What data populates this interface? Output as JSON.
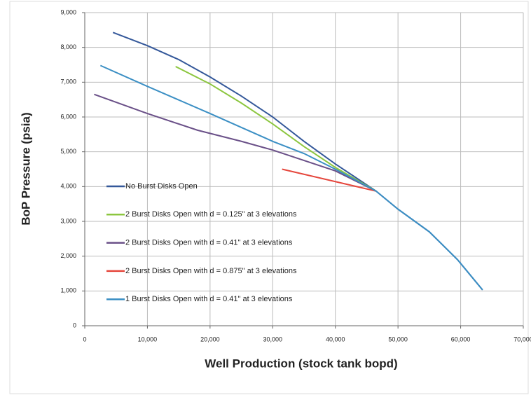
{
  "chart_data": {
    "type": "line",
    "xlabel": "Well Production (stock tank bopd)",
    "ylabel": "BoP Pressure (psia)",
    "xlim": [
      0,
      70000
    ],
    "xticks": [
      0,
      {
        "value": 10000,
        "label": "10,000"
      },
      {
        "value": 20000,
        "label": "20,000"
      },
      {
        "value": 30000,
        "label": "30,000"
      },
      {
        "value": 40000,
        "label": "40,000"
      },
      {
        "value": 50000,
        "label": "50,000"
      },
      {
        "value": 60000,
        "label": "60,000"
      },
      {
        "value": 70000,
        "label": "70,000"
      }
    ],
    "ylim": [
      0,
      9000
    ],
    "yticks": [
      0,
      {
        "value": 1000,
        "label": "1,000"
      },
      {
        "value": 2000,
        "label": "2,000"
      },
      {
        "value": 3000,
        "label": "3,000"
      },
      {
        "value": 4000,
        "label": "4,000"
      },
      {
        "value": 5000,
        "label": "5,000"
      },
      {
        "value": 6000,
        "label": "6,000"
      },
      {
        "value": 7000,
        "label": "7,000"
      },
      {
        "value": 8000,
        "label": "8,000"
      },
      {
        "value": 9000,
        "label": "9,000"
      }
    ],
    "grid": true,
    "series": [
      {
        "name": "No Burst Disks Open",
        "color": "#34589a",
        "x": [
          4500,
          10000,
          15000,
          20000,
          25000,
          30000,
          35000,
          40000,
          46500,
          50000,
          55000,
          59500,
          63500
        ],
        "values": [
          8430,
          8050,
          7650,
          7150,
          6600,
          6000,
          5300,
          4650,
          3870,
          3350,
          2700,
          1900,
          1030
        ]
      },
      {
        "name": "2 Burst Disks Open with d = 0.125\" at 3 elevations",
        "color": "#8cc63f",
        "x": [
          14500,
          20000,
          25000,
          30000,
          35000,
          40000,
          46500
        ],
        "values": [
          7450,
          6950,
          6400,
          5800,
          5150,
          4550,
          3870
        ]
      },
      {
        "name": "2 Burst Disks Open with d = 0.41\" at 3 elevations",
        "color": "#6a5088",
        "x": [
          1500,
          10000,
          18000,
          25000,
          30000,
          35000,
          40000,
          46500
        ],
        "values": [
          6650,
          6100,
          5620,
          5300,
          5050,
          4750,
          4450,
          3870
        ]
      },
      {
        "name": "2 Burst Disks Open with d = 0.875\" at 3 elevations",
        "color": "#e5463c",
        "x": [
          31500,
          46500
        ],
        "values": [
          4500,
          3870
        ]
      },
      {
        "name": "1 Burst Disks Open with d = 0.41\" at 3 elevations",
        "color": "#3b8fc4",
        "x": [
          2500,
          10000,
          20000,
          25000,
          30000,
          35000,
          40000,
          46500,
          50000,
          55000,
          59500,
          63500
        ],
        "values": [
          7480,
          6880,
          6100,
          5700,
          5300,
          4950,
          4500,
          3870,
          3350,
          2700,
          1900,
          1030
        ]
      }
    ]
  }
}
